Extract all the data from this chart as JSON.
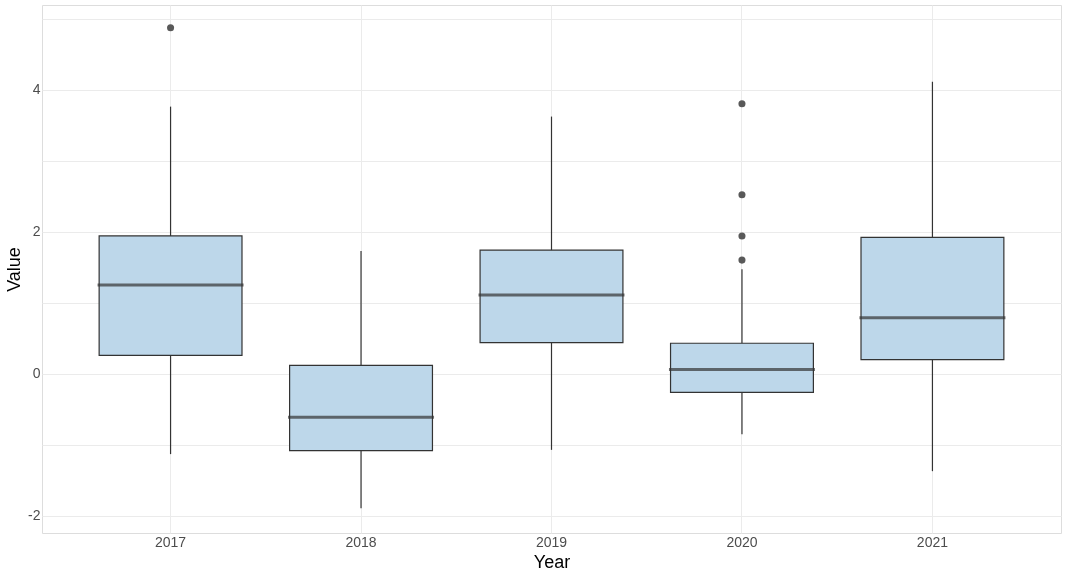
{
  "chart_data": {
    "type": "box",
    "xlabel": "Year",
    "ylabel": "Value",
    "categories": [
      "2017",
      "2018",
      "2019",
      "2020",
      "2021"
    ],
    "series": [
      {
        "color": "#bdd7ea",
        "boxes": [
          {
            "low": -1.13,
            "q1": 0.26,
            "median": 1.25,
            "q3": 1.94,
            "high": 3.76,
            "outliers": [
              4.87
            ]
          },
          {
            "low": -1.89,
            "q1": -1.08,
            "median": -0.61,
            "q3": 0.12,
            "high": 1.73
          },
          {
            "low": -1.07,
            "q1": 0.44,
            "median": 1.11,
            "q3": 1.74,
            "high": 3.62
          },
          {
            "low": -0.85,
            "q1": -0.26,
            "median": 0.06,
            "q3": 0.43,
            "high": 1.47,
            "outliers": [
              3.8,
              2.52,
              1.94,
              1.6
            ]
          },
          {
            "low": -1.37,
            "q1": 0.2,
            "median": 0.79,
            "q3": 1.92,
            "high": 4.11
          }
        ]
      }
    ],
    "ylim": [
      -2.24,
      5.19
    ],
    "yticks": [
      -2,
      {
        "value": -1,
        "label": null
      },
      0,
      {
        "value": 1,
        "label": null
      },
      2,
      {
        "value": 3,
        "label": null
      },
      4,
      {
        "value": 5,
        "label": null
      }
    ],
    "grid": true
  }
}
